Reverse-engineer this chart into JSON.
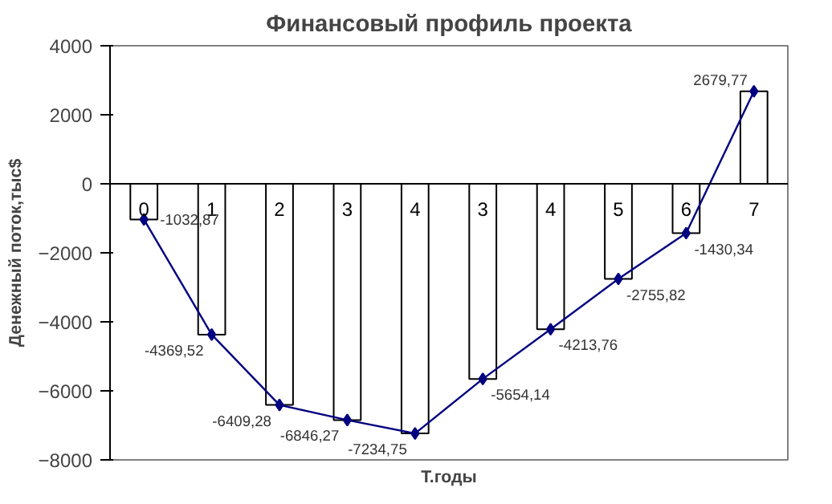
{
  "chart_data": {
    "type": "bar",
    "title": "Финансовый профиль проекта",
    "xlabel": "Т.годы",
    "ylabel": "Денежный поток,тыс$",
    "categories": [
      "0",
      "1",
      "2",
      "3",
      "4",
      "3",
      "4",
      "5",
      "6",
      "7"
    ],
    "series": [
      {
        "color": "#ffffff",
        "values": [
          -1032.87,
          -4369.52,
          -6409.28,
          -6846.27,
          -7234.75,
          -5654.14,
          -4213.76,
          -2755.82,
          -1430.34,
          2679.77
        ]
      },
      {
        "type": "line",
        "color": "#000080",
        "marker": "diamond",
        "values": [
          -1032.87,
          -4369.52,
          -6409.28,
          -6846.27,
          -7234.75,
          -5654.14,
          -4213.76,
          -2755.82,
          -1430.34,
          2679.77
        ],
        "value_labels": [
          "-1032,87",
          "-4369,52",
          "-6409,28",
          "-6846,27",
          "-7234,75",
          "-5654,14",
          "-4213,76",
          "-2755,82",
          "-1430,34",
          "2679,77"
        ]
      }
    ],
    "ylim": [
      -8000,
      4000
    ],
    "yticks": [
      -8000,
      -6000,
      -4000,
      -2000,
      0,
      2000,
      4000
    ],
    "grid": false
  }
}
